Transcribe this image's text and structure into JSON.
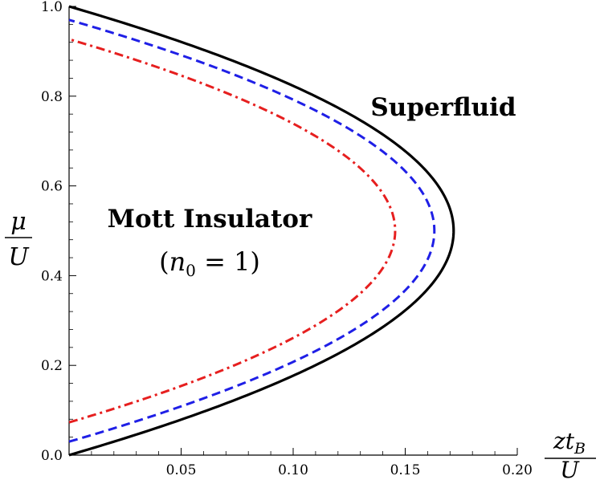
{
  "chart_data": {
    "type": "line",
    "title": "",
    "xlabel": {
      "numerator": "zt",
      "subscript": "B",
      "denominator": "U"
    },
    "ylabel": {
      "numerator": "μ",
      "denominator": "U"
    },
    "xlim": [
      0,
      0.2
    ],
    "ylim": [
      0,
      1.0
    ],
    "x_ticks": [
      "0.05",
      "0.10",
      "0.15",
      "0.20"
    ],
    "y_ticks": [
      "0.0",
      "0.2",
      "0.4",
      "0.6",
      "0.8",
      "1.0"
    ],
    "x_tick_values": [
      0.05,
      0.1,
      0.15,
      0.2
    ],
    "y_tick_values": [
      0.0,
      0.2,
      0.4,
      0.6,
      0.8,
      1.0
    ],
    "grid": false,
    "series": [
      {
        "style": "solid",
        "color": "#000000",
        "mu_low": 0.0,
        "mu_high": 1.0,
        "x_max": 0.1716
      },
      {
        "style": "dashed",
        "color": "#1f1fe6",
        "mu_low": 0.03,
        "mu_high": 0.97,
        "x_max": 0.163
      },
      {
        "style": "dashdot",
        "color": "#e61f1f",
        "mu_low": 0.073,
        "mu_high": 0.927,
        "x_max": 0.1455
      }
    ],
    "annotations": {
      "mott_title": "Mott Insulator",
      "mott_sub_open": "(",
      "mott_sub_var": "n",
      "mott_sub_index": "0",
      "mott_sub_rest": " = 1)",
      "superfluid": "Superfluid"
    }
  }
}
